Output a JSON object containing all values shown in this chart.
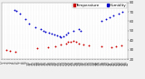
{
  "bg_color": "#f0f0f0",
  "plot_bg_color": "#ffffff",
  "grid_color": "#cccccc",
  "series": [
    {
      "label": "Humidity",
      "color": "#0000cc",
      "x": [
        0.1,
        0.12,
        0.15,
        0.19,
        0.22,
        0.27,
        0.31,
        0.33,
        0.35,
        0.38,
        0.4,
        0.42,
        0.44,
        0.46,
        0.47,
        0.49,
        0.51,
        0.53,
        0.57,
        0.61,
        0.63,
        0.79,
        0.83,
        0.86,
        0.89,
        0.93,
        0.96
      ],
      "y": [
        72,
        71,
        68,
        62,
        58,
        54,
        52,
        50,
        49,
        48,
        47,
        46,
        45,
        44,
        43,
        44,
        46,
        48,
        50,
        52,
        50,
        60,
        62,
        64,
        66,
        68,
        70
      ]
    },
    {
      "label": "Temperature",
      "color": "#cc0000",
      "x": [
        0.04,
        0.07,
        0.11,
        0.28,
        0.37,
        0.43,
        0.47,
        0.51,
        0.53,
        0.55,
        0.57,
        0.59,
        0.61,
        0.65,
        0.69,
        0.79,
        0.87,
        0.91,
        0.95
      ],
      "y": [
        30,
        29,
        28,
        32,
        33,
        34,
        36,
        37,
        38,
        38,
        39,
        38,
        37,
        36,
        35,
        34,
        33,
        34,
        35
      ]
    }
  ],
  "xlim": [
    0.0,
    1.0
  ],
  "ylim": [
    20,
    80
  ],
  "yticks": [
    20,
    30,
    40,
    50,
    60,
    70,
    80
  ],
  "ytick_labels": [
    "20",
    "30",
    "40",
    "50",
    "60",
    "70",
    "80"
  ],
  "num_xticks": 48,
  "marker_size": 1.8,
  "tick_fontsize": 3.0,
  "legend_fontsize": 3.0,
  "legend_labels": [
    "Temperature",
    "Humidity"
  ],
  "legend_colors": [
    "#cc0000",
    "#0000cc"
  ]
}
